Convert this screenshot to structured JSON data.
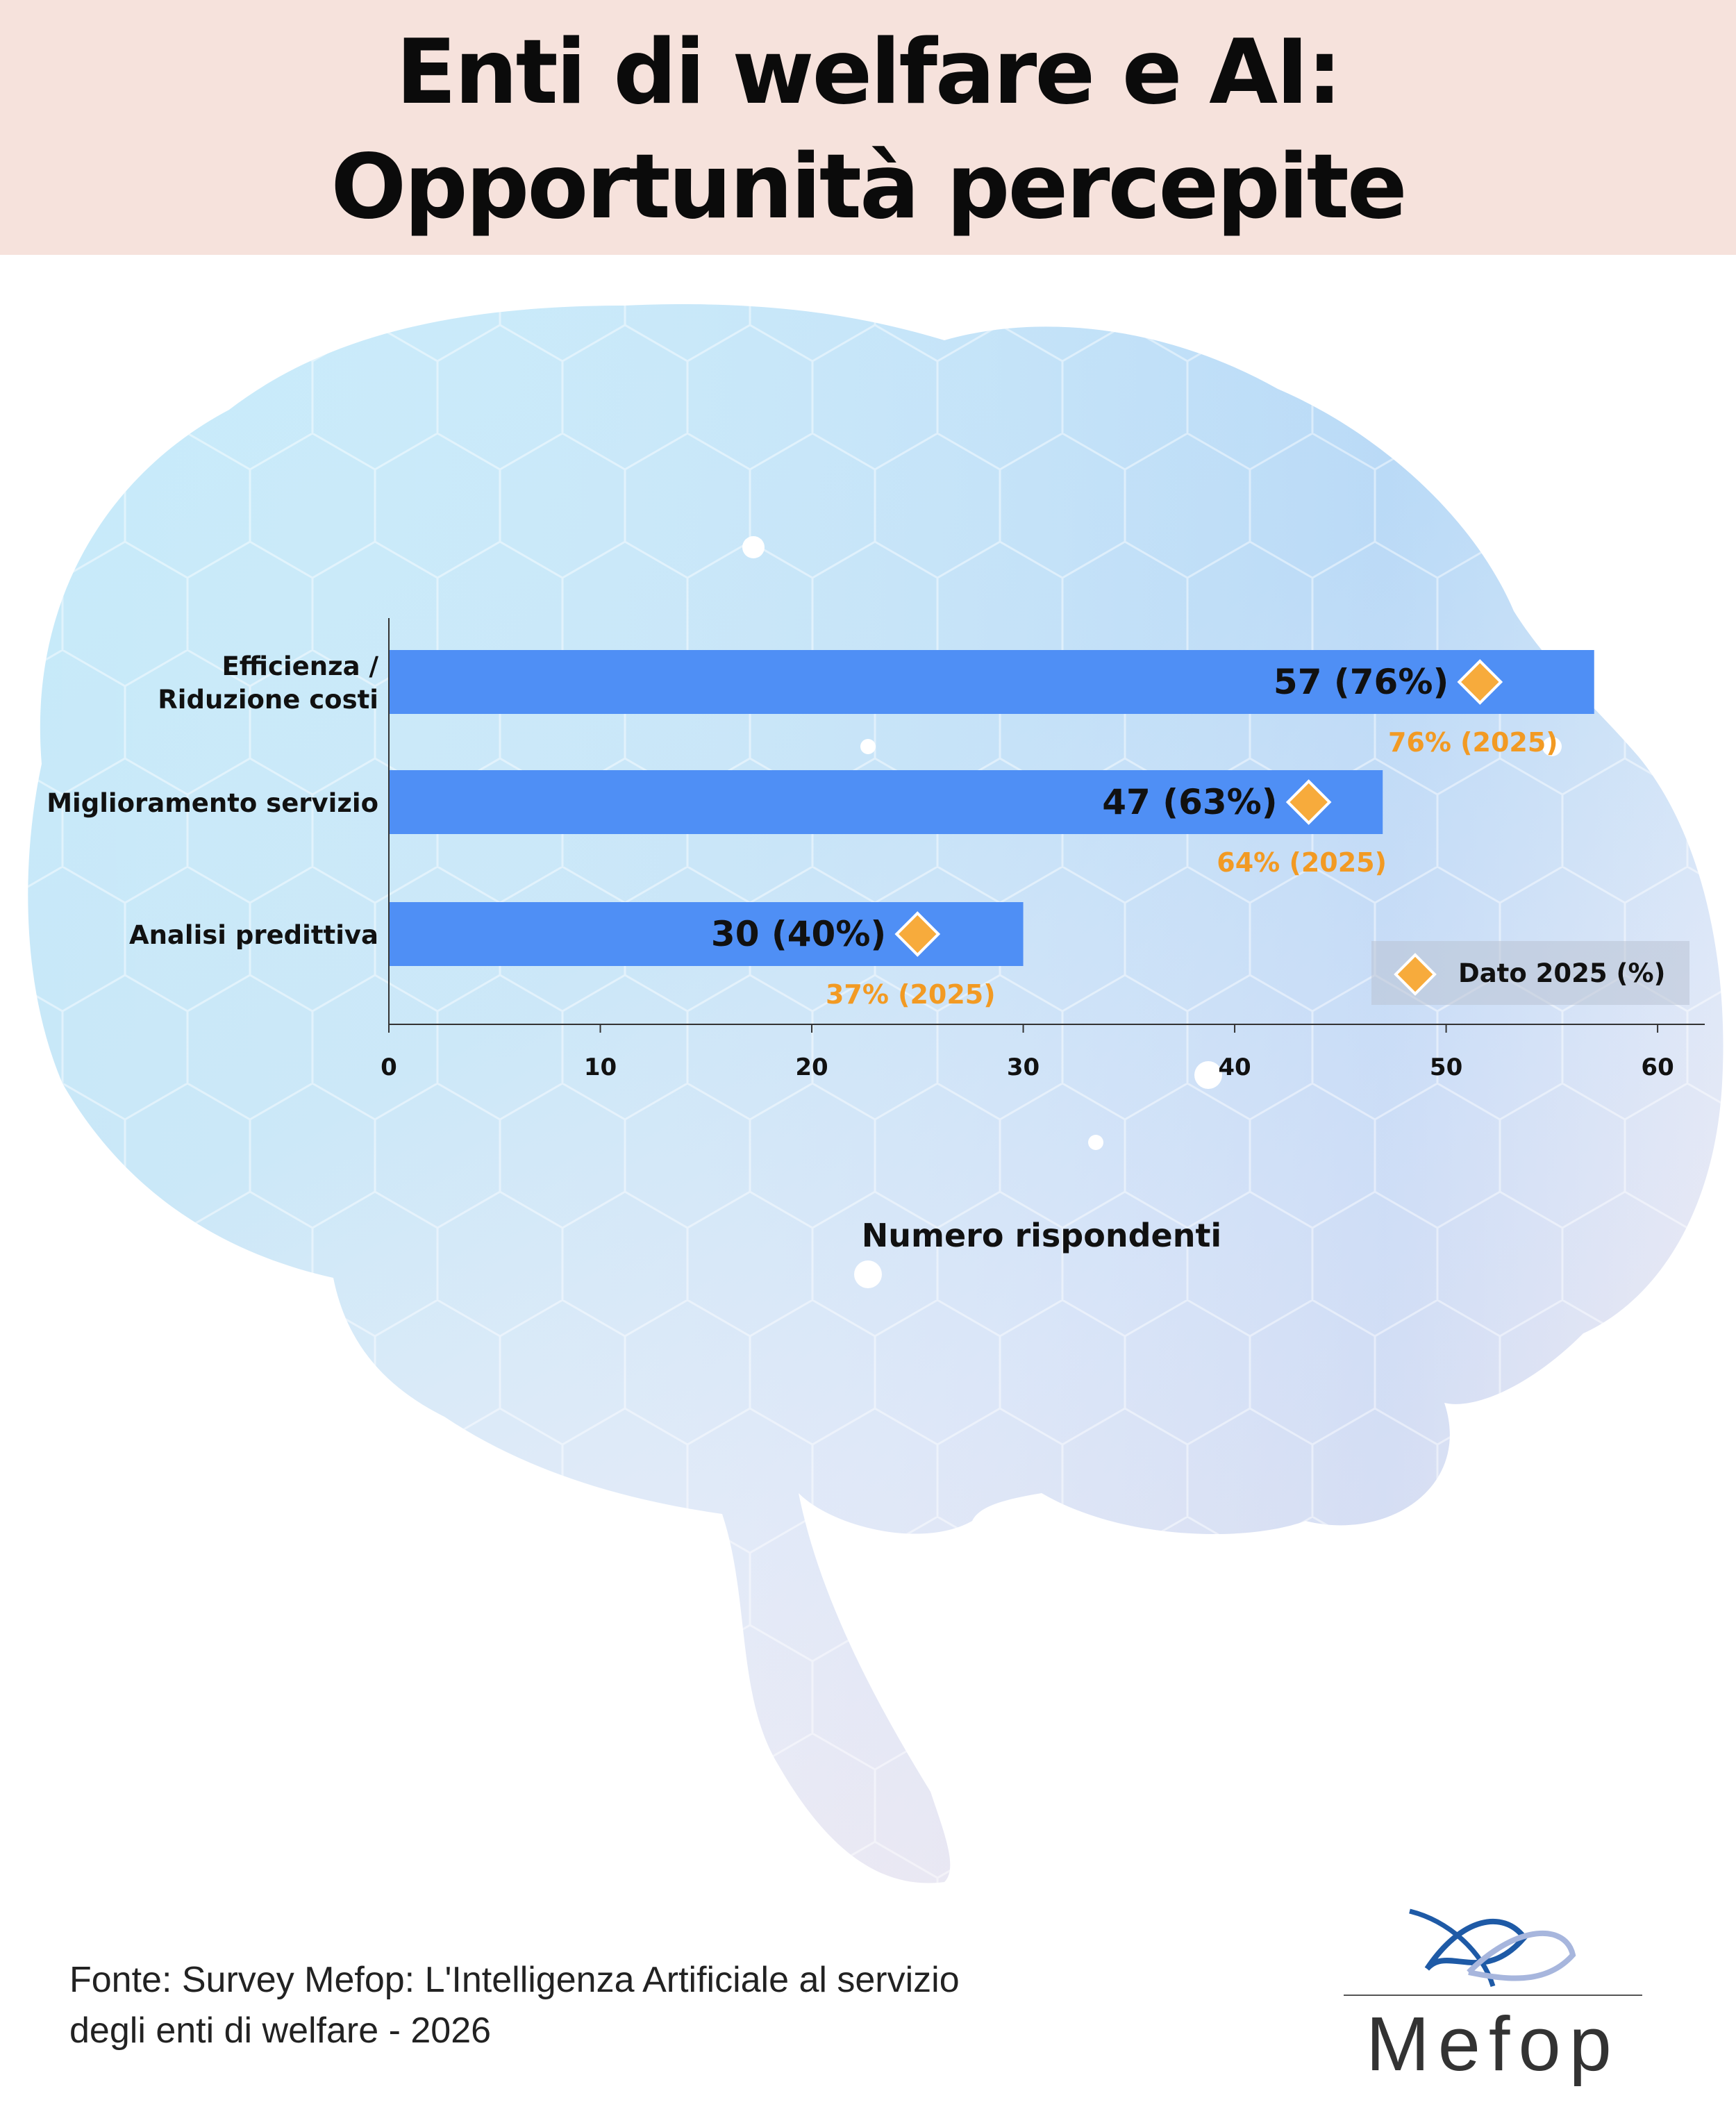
{
  "header": {
    "title_line1": "Enti di welfare e AI:",
    "title_line2": "Opportunità percepite"
  },
  "colors": {
    "header_bg": "#f6e2dc",
    "bar": "#4f8ff5",
    "marker": "#f7ab3c",
    "marker_label": "#f29a23",
    "text": "#111111"
  },
  "chart_data": {
    "type": "bar",
    "orientation": "horizontal",
    "categories": [
      [
        "Efficienza  /",
        "Riduzione costi"
      ],
      [
        "Miglioramento servizio"
      ],
      [
        "Analisi predittiva"
      ]
    ],
    "series": [
      {
        "values": [
          57,
          47,
          30
        ],
        "value_labels": [
          "57 (76%)",
          "47 (63%)",
          "30 (40%)"
        ]
      },
      {
        "name": "Dato 2025 (%)",
        "marker": "diamond",
        "values": [
          51.6,
          43.5,
          25.0
        ],
        "value_labels": [
          "76% (2025)",
          "64% (2025)",
          "37% (2025)"
        ]
      }
    ],
    "xlabel": "Numero rispondenti",
    "ylabel": "",
    "xlim": [
      0,
      62
    ],
    "xticks": [
      0,
      10,
      20,
      30,
      40,
      50,
      60
    ],
    "legend_position": "bottom-right",
    "grid": false
  },
  "source_text": "Fonte: Survey Mefop: L'Intelligenza Artificiale al servizio\ndegli enti di welfare - 2026",
  "logo": {
    "text": "Mefop"
  }
}
